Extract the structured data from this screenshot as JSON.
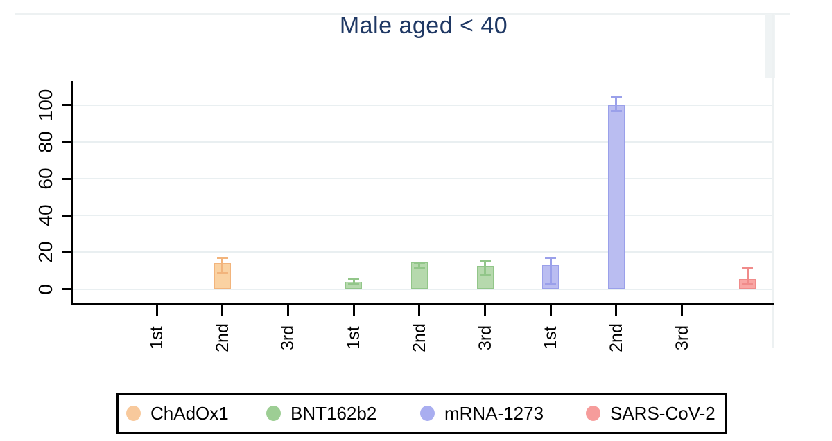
{
  "chart_data": {
    "type": "bar",
    "title": "Male aged < 40",
    "title_color": "#1f3864",
    "xlabel": "",
    "ylabel": "",
    "x_tick_labels": [
      "1st",
      "2nd",
      "3rd",
      "1st",
      "2nd",
      "3rd",
      "1st",
      "2nd",
      "3rd"
    ],
    "y_ticks": [
      0,
      20,
      40,
      60,
      80,
      100
    ],
    "ylim": [
      0,
      113
    ],
    "grid": "horizontal",
    "gridline_color": "#e9eff1",
    "axis_color": "#000000",
    "error_bars": "95% CI with caps",
    "series": [
      {
        "name": "ChAdOx1",
        "fill": "#fad2a2",
        "edge": "#f2b47c",
        "points": [
          {
            "dose": "2nd",
            "slot": 1,
            "value": 14,
            "ci_low": 8,
            "ci_high": 17.5
          }
        ]
      },
      {
        "name": "BNT162b2",
        "fill": "#b6d9ad",
        "edge": "#92c689",
        "points": [
          {
            "dose": "1st",
            "slot": 3,
            "value": 4,
            "ci_low": 2,
            "ci_high": 6
          },
          {
            "dose": "2nd",
            "slot": 4,
            "value": 14.5,
            "ci_low": 11,
            "ci_high": 15
          },
          {
            "dose": "3rd",
            "slot": 5,
            "value": 12.5,
            "ci_low": 7,
            "ci_high": 15.5
          }
        ]
      },
      {
        "name": "mRNA-1273",
        "fill": "#babdf1",
        "edge": "#9aa0ea",
        "points": [
          {
            "dose": "1st",
            "slot": 6,
            "value": 13,
            "ci_low": 2,
            "ci_high": 17.5
          },
          {
            "dose": "2nd",
            "slot": 7,
            "value": 100,
            "ci_low": 96,
            "ci_high": 105
          }
        ]
      },
      {
        "name": "SARS-CoV-2",
        "fill": "#f9a6a4",
        "edge": "#f08b8a",
        "points": [
          {
            "dose": "",
            "slot": 9,
            "value": 5.5,
            "ci_low": 2,
            "ci_high": 12
          }
        ]
      }
    ],
    "legend": {
      "position": "bottom",
      "items": [
        {
          "label": "ChAdOx1",
          "color": "#f8c99c"
        },
        {
          "label": "BNT162b2",
          "color": "#9dce94"
        },
        {
          "label": "mRNA-1273",
          "color": "#a9aef0"
        },
        {
          "label": "SARS-CoV-2",
          "color": "#f69c9b"
        }
      ]
    }
  }
}
